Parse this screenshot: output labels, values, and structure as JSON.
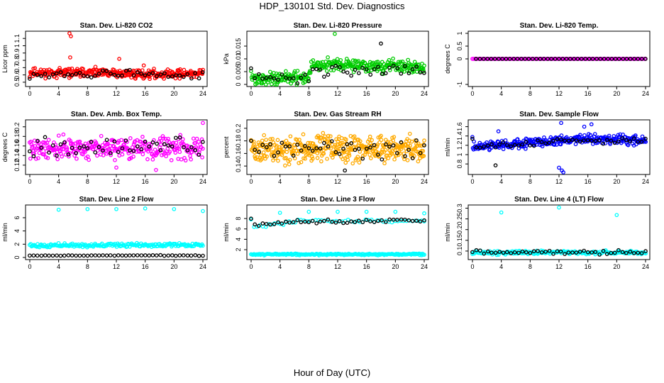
{
  "figure": {
    "title": "HDP_130101  Std. Dev. Diagnostics",
    "xlabel": "Hour of Day (UTC)"
  },
  "chart_data": [
    {
      "type": "scatter",
      "title": "Stan. Dev. Li-820 CO2",
      "ylabel": "Licor ppm",
      "xlim": [
        0,
        24
      ],
      "ylim": [
        0.47,
        1.17
      ],
      "xticks": [
        "0",
        "4",
        "8",
        "12",
        "16",
        "20",
        "24"
      ],
      "yticks": [
        0.5,
        0.6,
        0.7,
        0.8,
        0.9,
        1.0,
        1.1
      ],
      "series": [
        {
          "color": "#ff0000",
          "seed": 11,
          "n": 330,
          "jitter": 0.055,
          "segments": [
            [
              0,
              0.63
            ],
            [
              8,
              0.63
            ],
            [
              16,
              0.61
            ],
            [
              24,
              0.62
            ]
          ],
          "points": [
            [
              5.5,
              1.17
            ],
            [
              5.7,
              1.13
            ],
            [
              5.6,
              0.84
            ],
            [
              12.4,
              0.82
            ],
            [
              15.8,
              0.73
            ]
          ]
        },
        {
          "color": "#000000",
          "seed": 12,
          "n": 46,
          "jitter": 0.05,
          "segments": [
            [
              0,
              0.6
            ],
            [
              12,
              0.61
            ],
            [
              24,
              0.6
            ]
          ]
        }
      ]
    },
    {
      "type": "scatter",
      "title": "Stan. Dev. Li-820 Pressure",
      "ylabel": "kPa",
      "xlim": [
        0,
        24
      ],
      "ylim": [
        0,
        0.02
      ],
      "xticks": [
        "0",
        "4",
        "8",
        "12",
        "16",
        "20",
        "24"
      ],
      "yticks": [
        0.0,
        0.005,
        0.01,
        0.015
      ],
      "series": [
        {
          "color": "#00cc00",
          "seed": 21,
          "n": 330,
          "jitter": 0.0022,
          "segments": [
            [
              0,
              0.0025
            ],
            [
              7.6,
              0.0025
            ],
            [
              8.6,
              0.0078
            ],
            [
              24,
              0.0068
            ]
          ],
          "points": [
            [
              11.6,
              0.0198
            ]
          ]
        },
        {
          "color": "#000000",
          "seed": 22,
          "n": 46,
          "jitter": 0.002,
          "segments": [
            [
              0,
              0.002
            ],
            [
              8,
              0.002
            ],
            [
              8.6,
              0.0055
            ],
            [
              24,
              0.006
            ]
          ],
          "points": [
            [
              18,
              0.016
            ]
          ]
        }
      ]
    },
    {
      "type": "scatter",
      "title": "Stan. Dev. Li-820 Temp.",
      "ylabel": "degrees C",
      "xlim": [
        0,
        24
      ],
      "ylim": [
        -1,
        1
      ],
      "xticks": [
        "0",
        "4",
        "8",
        "12",
        "16",
        "20",
        "24"
      ],
      "yticks": [
        -1.0,
        0.0,
        0.5,
        1.0
      ],
      "series": [
        {
          "color": "#ff00ff",
          "seed": 31,
          "n": 140,
          "jitter": 0.0,
          "segments": [
            [
              0,
              0
            ],
            [
              24,
              0
            ]
          ]
        },
        {
          "color": "#000000",
          "seed": 32,
          "n": 46,
          "jitter": 0.0,
          "segments": [
            [
              0.5,
              0
            ],
            [
              24,
              0
            ]
          ]
        }
      ]
    },
    {
      "type": "scatter",
      "title": "Stan. Dev. Amb. Box Temp.",
      "ylabel": "degrees C",
      "xlim": [
        0,
        24
      ],
      "ylim": [
        0.105,
        0.21
      ],
      "xticks": [
        "0",
        "4",
        "8",
        "12",
        "16",
        "20",
        "24"
      ],
      "yticks": [
        0.12,
        0.14,
        0.16,
        0.18,
        0.2
      ],
      "series": [
        {
          "color": "#ff00ff",
          "seed": 41,
          "n": 330,
          "jitter": 0.02,
          "segments": [
            [
              0,
              0.155
            ],
            [
              24,
              0.155
            ]
          ],
          "points": [
            [
              24,
              0.208
            ],
            [
              17.5,
              0.11
            ],
            [
              12,
              0.115
            ]
          ]
        },
        {
          "color": "#000000",
          "seed": 42,
          "n": 46,
          "jitter": 0.017,
          "segments": [
            [
              0,
              0.155
            ],
            [
              24,
              0.16
            ]
          ]
        }
      ]
    },
    {
      "type": "scatter",
      "title": "Stan. Dev. Gas Stream RH",
      "ylabel": "percent",
      "xlim": [
        0,
        24
      ],
      "ylim": [
        0.13,
        0.21
      ],
      "xticks": [
        "0",
        "4",
        "8",
        "12",
        "16",
        "20",
        "24"
      ],
      "yticks": [
        0.14,
        0.16,
        0.18,
        0.2
      ],
      "series": [
        {
          "color": "#ffaa00",
          "seed": 51,
          "n": 420,
          "jitter": 0.019,
          "segments": [
            [
              0,
              0.167
            ],
            [
              24,
              0.167
            ]
          ]
        },
        {
          "color": "#000000",
          "seed": 52,
          "n": 46,
          "jitter": 0.015,
          "segments": [
            [
              0,
              0.165
            ],
            [
              24,
              0.172
            ]
          ],
          "points": [
            [
              13,
              0.133
            ]
          ]
        }
      ]
    },
    {
      "type": "scatter",
      "title": "Stan. Dev. Sample Flow",
      "ylabel": "ml/min",
      "xlim": [
        0,
        24
      ],
      "ylim": [
        0.62,
        1.7
      ],
      "xticks": [
        "0",
        "4",
        "8",
        "12",
        "16",
        "20",
        "24"
      ],
      "yticks": [
        0.8,
        1.0,
        1.2,
        1.4,
        1.6
      ],
      "series": [
        {
          "color": "#0000ff",
          "seed": 61,
          "n": 330,
          "jitter": 0.09,
          "segments": [
            [
              0,
              1.15
            ],
            [
              8,
              1.25
            ],
            [
              16,
              1.35
            ],
            [
              24,
              1.3
            ]
          ],
          "points": [
            [
              12,
              0.72
            ],
            [
              12.4,
              0.66
            ],
            [
              12.6,
              0.62
            ],
            [
              16.5,
              1.65
            ],
            [
              15.5,
              1.6
            ],
            [
              3.6,
              1.5
            ],
            [
              12.3,
              1.68
            ]
          ]
        },
        {
          "color": "#000000",
          "seed": 62,
          "n": 46,
          "jitter": 0.06,
          "segments": [
            [
              0,
              1.15
            ],
            [
              12,
              1.3
            ],
            [
              24,
              1.3
            ]
          ],
          "points": [
            [
              3.2,
              0.77
            ]
          ]
        }
      ]
    },
    {
      "type": "scatter",
      "title": "Stan. Dev. Line 2 Flow",
      "ylabel": "ml/min",
      "xlim": [
        0,
        24
      ],
      "ylim": [
        0,
        7.6
      ],
      "xticks": [
        "0",
        "4",
        "8",
        "12",
        "16",
        "20",
        "24"
      ],
      "yticks": [
        0,
        2,
        4,
        6
      ],
      "series": [
        {
          "color": "#00ffff",
          "seed": 71,
          "n": 200,
          "jitter": 0.25,
          "segments": [
            [
              0,
              1.8
            ],
            [
              24,
              1.9
            ]
          ],
          "points": [
            [
              4,
              7.2
            ],
            [
              8,
              7.3
            ],
            [
              12,
              7.3
            ],
            [
              16,
              7.4
            ],
            [
              20,
              7.3
            ],
            [
              24,
              7.0
            ]
          ]
        },
        {
          "color": "#000000",
          "seed": 72,
          "n": 46,
          "jitter": 0.05,
          "segments": [
            [
              0,
              0.3
            ],
            [
              24,
              0.3
            ]
          ]
        }
      ]
    },
    {
      "type": "scatter",
      "title": "Stan. Dev. Line 3 Flow",
      "ylabel": "ml/min",
      "xlim": [
        0,
        24
      ],
      "ylim": [
        0.5,
        10.2
      ],
      "xticks": [
        "0",
        "4",
        "8",
        "12",
        "16",
        "20",
        "24"
      ],
      "yticks": [
        2,
        4,
        6,
        8
      ],
      "series": [
        {
          "color": "#00ffff",
          "seed": 81,
          "n": 200,
          "jitter": 0.15,
          "segments": [
            [
              0,
              1.1
            ],
            [
              24,
              1.1
            ]
          ],
          "points": [
            [
              4,
              9.1
            ],
            [
              8,
              9.3
            ],
            [
              12,
              9.3
            ],
            [
              16,
              9.3
            ],
            [
              20,
              9.3
            ],
            [
              24,
              9.0
            ]
          ]
        },
        {
          "color": "#00ffff",
          "seed": 83,
          "n": 60,
          "jitter": 0.3,
          "segments": [
            [
              0,
              6.3
            ],
            [
              6,
              7.5
            ],
            [
              12,
              7.5
            ],
            [
              24,
              7.6
            ]
          ]
        },
        {
          "color": "#000000",
          "seed": 82,
          "n": 46,
          "jitter": 0.3,
          "segments": [
            [
              0,
              6.5
            ],
            [
              6,
              7.5
            ],
            [
              12,
              7.4
            ],
            [
              24,
              7.7
            ]
          ]
        }
      ]
    },
    {
      "type": "scatter",
      "title": "Stan. Dev. Line 4 (LT) Flow",
      "ylabel": "ml/min",
      "xlim": [
        0,
        24
      ],
      "ylim": [
        0.07,
        0.305
      ],
      "xticks": [
        "0",
        "4",
        "8",
        "12",
        "16",
        "20",
        "24"
      ],
      "yticks": [
        0.1,
        0.15,
        0.2,
        0.25,
        0.3
      ],
      "series": [
        {
          "color": "#00ffff",
          "seed": 91,
          "n": 200,
          "jitter": 0.008,
          "segments": [
            [
              0,
              0.093
            ],
            [
              24,
              0.093
            ]
          ],
          "points": [
            [
              4,
              0.28
            ],
            [
              12,
              0.303
            ],
            [
              20,
              0.268
            ]
          ]
        },
        {
          "color": "#000000",
          "seed": 92,
          "n": 46,
          "jitter": 0.01,
          "segments": [
            [
              0,
              0.095
            ],
            [
              24,
              0.095
            ]
          ]
        }
      ]
    }
  ]
}
